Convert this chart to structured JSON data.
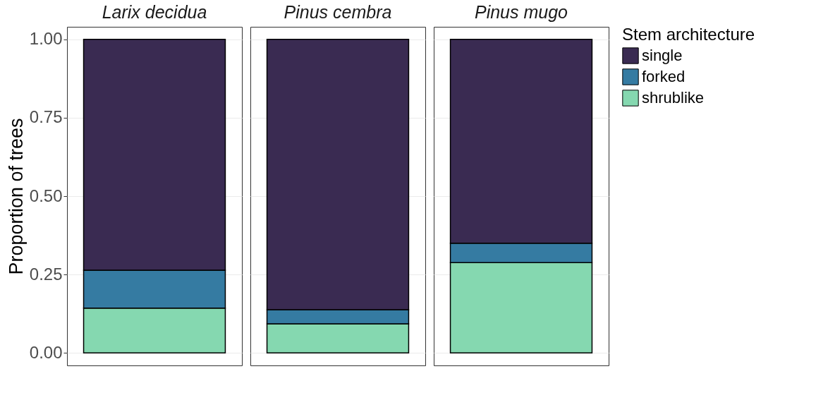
{
  "chart_data": {
    "type": "bar",
    "stacked": true,
    "ylabel": "Proportion of trees",
    "legend_title": "Stem architecture",
    "categories": [
      "Larix decidua",
      "Pinus cembra",
      "Pinus mugo"
    ],
    "series": [
      {
        "name": "shrublike",
        "color": "#85d8b0",
        "values": [
          0.143,
          0.093,
          0.288
        ]
      },
      {
        "name": "forked",
        "color": "#357ba2",
        "values": [
          0.121,
          0.045,
          0.062
        ]
      },
      {
        "name": "single",
        "color": "#3a2b52",
        "values": [
          0.736,
          0.862,
          0.65
        ]
      }
    ],
    "ylim": [
      -0.04,
      1.04
    ],
    "yticks": [
      {
        "value": 0,
        "label": "0.00"
      },
      {
        "value": 0.25,
        "label": "0.25"
      },
      {
        "value": 0.5,
        "label": "0.50"
      },
      {
        "value": 0.75,
        "label": "0.75"
      },
      {
        "value": 1,
        "label": "1.00"
      }
    ],
    "grid": true,
    "legend": "right",
    "tick_labels": "y"
  }
}
